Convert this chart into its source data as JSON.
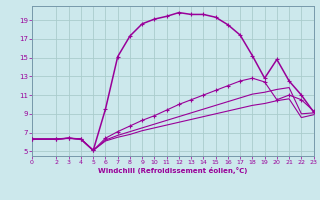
{
  "bg_color": "#cce8ec",
  "line_color": "#990099",
  "grid_color": "#aacccc",
  "xlabel": "Windchill (Refroidissement éolien,°C)",
  "xlim": [
    0,
    23
  ],
  "ylim": [
    4.5,
    20.5
  ],
  "xticks": [
    0,
    2,
    3,
    4,
    5,
    6,
    7,
    8,
    9,
    10,
    11,
    12,
    13,
    14,
    15,
    16,
    17,
    18,
    19,
    20,
    21,
    22,
    23
  ],
  "yticks": [
    5,
    7,
    9,
    11,
    13,
    15,
    17,
    19
  ],
  "main_curve_x": [
    0,
    2,
    3,
    4,
    5,
    6,
    7,
    8,
    9,
    10,
    11,
    12,
    13,
    14,
    15,
    16,
    17,
    18,
    19,
    20,
    21,
    22,
    23
  ],
  "main_curve_y": [
    6.3,
    6.3,
    6.4,
    6.3,
    5.1,
    9.5,
    15.1,
    17.3,
    18.6,
    19.1,
    19.4,
    19.8,
    19.6,
    19.6,
    19.3,
    18.5,
    17.4,
    15.2,
    12.8,
    14.8,
    12.5,
    11.0,
    9.2
  ],
  "curve1_x": [
    0,
    2,
    3,
    4,
    5,
    6,
    7,
    8,
    9,
    10,
    11,
    12,
    13,
    14,
    15,
    16,
    17,
    18,
    19,
    20,
    21,
    22,
    23
  ],
  "curve1_y": [
    6.3,
    6.3,
    6.4,
    6.3,
    5.1,
    6.4,
    7.1,
    7.7,
    8.3,
    8.8,
    9.4,
    10.0,
    10.5,
    11.0,
    11.5,
    12.0,
    12.5,
    12.8,
    12.4,
    10.5,
    11.0,
    10.5,
    9.3
  ],
  "curve2_x": [
    0,
    2,
    3,
    4,
    5,
    6,
    7,
    8,
    9,
    10,
    11,
    12,
    13,
    14,
    15,
    16,
    17,
    18,
    19,
    20,
    21,
    22,
    23
  ],
  "curve2_y": [
    6.3,
    6.3,
    6.4,
    6.3,
    5.1,
    6.2,
    6.7,
    7.1,
    7.5,
    7.9,
    8.3,
    8.7,
    9.1,
    9.5,
    9.9,
    10.3,
    10.7,
    11.1,
    11.3,
    11.6,
    11.8,
    9.0,
    9.1
  ],
  "curve3_x": [
    0,
    2,
    3,
    4,
    5,
    6,
    7,
    8,
    9,
    10,
    11,
    12,
    13,
    14,
    15,
    16,
    17,
    18,
    19,
    20,
    21,
    22,
    23
  ],
  "curve3_y": [
    6.3,
    6.3,
    6.4,
    6.3,
    5.1,
    6.1,
    6.5,
    6.8,
    7.2,
    7.5,
    7.8,
    8.1,
    8.4,
    8.7,
    9.0,
    9.3,
    9.6,
    9.9,
    10.1,
    10.4,
    10.6,
    8.6,
    8.9
  ]
}
